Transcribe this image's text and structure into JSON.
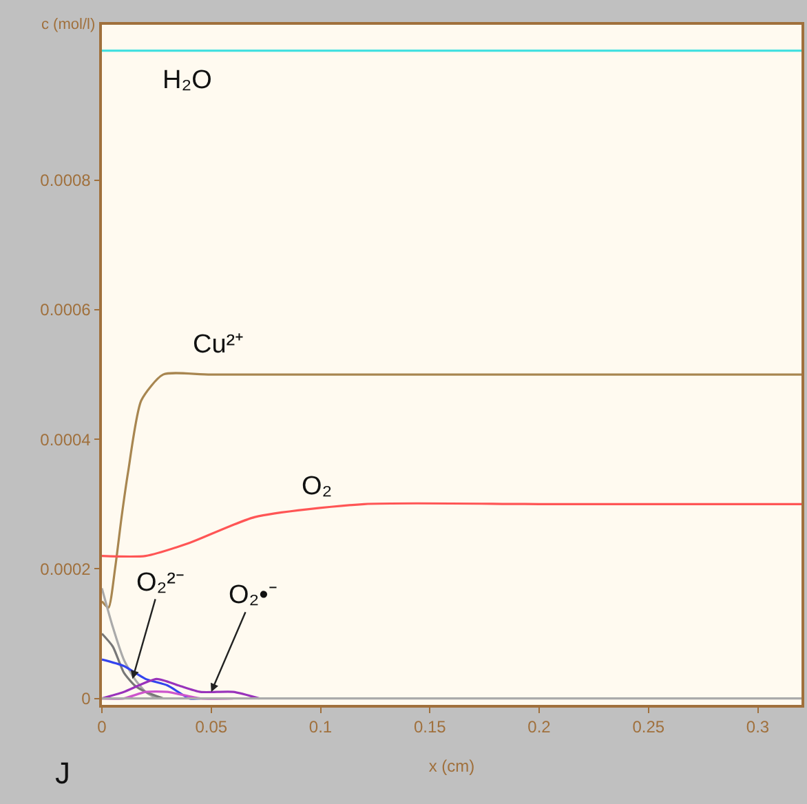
{
  "chart_data": {
    "type": "line",
    "xlabel": "x (cm)",
    "ylabel": "c (mol/l)",
    "xlim": [
      0,
      0.32
    ],
    "ylim": [
      -1e-05,
      0.00104
    ],
    "xticks": [
      0,
      0.05,
      0.1,
      0.15,
      0.2,
      0.25,
      0.3
    ],
    "yticks": [
      0,
      0.0002,
      0.0004,
      0.0006,
      0.0008
    ],
    "grid": false,
    "marker": "none",
    "line_style": "solid",
    "series": [
      {
        "color": "#44e0e0",
        "x": [
          0,
          0.05,
          0.1,
          0.32
        ],
        "values": [
          0.001,
          0.001,
          0.001,
          0.001
        ]
      },
      {
        "color": "#a88650",
        "x": [
          0,
          0.003,
          0.006,
          0.009,
          0.012,
          0.018,
          0.028,
          0.05,
          0.32
        ],
        "values": [
          0.00015,
          0.00014,
          0.0002,
          0.00028,
          0.00035,
          0.00046,
          0.0005,
          0.0005,
          0.0005
        ]
      },
      {
        "color": "#ff5555",
        "x": [
          0,
          0.02,
          0.04,
          0.07,
          0.12,
          0.2,
          0.32
        ],
        "values": [
          0.00022,
          0.00022,
          0.00024,
          0.00028,
          0.0003,
          0.0003,
          0.0003
        ]
      },
      {
        "color": "#aaaaaa",
        "x": [
          0,
          0.005,
          0.01,
          0.015,
          0.02,
          0.025
        ],
        "values": [
          0.00017,
          0.00011,
          6e-05,
          3e-05,
          1e-05,
          0
        ]
      },
      {
        "color": "#777777",
        "x": [
          0,
          0.005,
          0.01,
          0.015,
          0.02,
          0.028
        ],
        "values": [
          0.0001,
          8e-05,
          4e-05,
          2e-05,
          1e-05,
          0
        ]
      },
      {
        "color": "#3344ee",
        "x": [
          0,
          0.01,
          0.02,
          0.03,
          0.04,
          0.045
        ],
        "values": [
          6e-05,
          5e-05,
          3e-05,
          2e-05,
          0,
          0
        ]
      },
      {
        "color": "#9933bb",
        "x": [
          0,
          0.01,
          0.025,
          0.035,
          0.045,
          0.06,
          0.072
        ],
        "values": [
          0,
          1e-05,
          3e-05,
          2e-05,
          1e-05,
          1e-05,
          0
        ]
      },
      {
        "color": "#cc55cc",
        "x": [
          0,
          0.01,
          0.02,
          0.03,
          0.045,
          0.06
        ],
        "values": [
          0,
          0,
          1e-05,
          1e-05,
          0,
          0
        ]
      },
      {
        "color": "#aaaaaa",
        "x": [
          0,
          0.1,
          0.32
        ],
        "values": [
          0,
          0,
          0
        ]
      }
    ],
    "annotations": [
      {
        "text": "H₂O",
        "x": 0.02,
        "y": 0.001
      },
      {
        "text": "Cu²⁺",
        "x": 0.04,
        "y": 0.0005
      },
      {
        "text": "O₂",
        "x": 0.09,
        "y": 0.00028
      },
      {
        "text": "O₂²⁻",
        "x": 0.014,
        "y": 3e-05
      },
      {
        "text": "O₂•⁻",
        "x": 0.05,
        "y": 1e-05
      },
      "J"
    ]
  }
}
